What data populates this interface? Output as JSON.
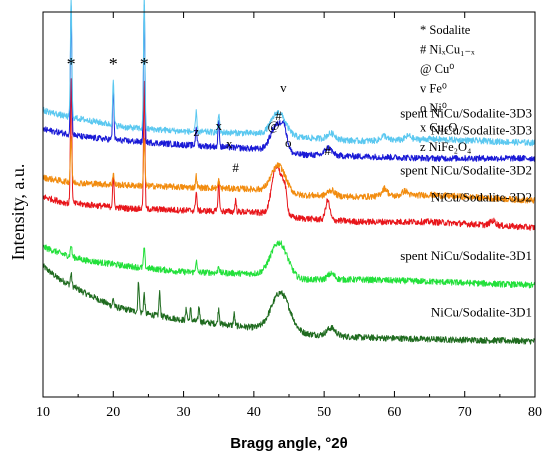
{
  "chart_data": {
    "type": "line",
    "xlabel": "Bragg angle, °2θ",
    "ylabel": "Intensity, a.u.",
    "xlim": [
      10,
      80
    ],
    "x_ticks": [
      10,
      20,
      30,
      40,
      50,
      60,
      70,
      80
    ],
    "y_ticks_shown": false,
    "grid": false,
    "series": [
      {
        "name": "spent NiCu/Sodalite-3D3",
        "color": "#5bc8f0",
        "baseline": [
          [
            10,
            0.745
          ],
          [
            13,
            0.73
          ],
          [
            16,
            0.72
          ],
          [
            22,
            0.7
          ],
          [
            30,
            0.69
          ],
          [
            40,
            0.685
          ],
          [
            46,
            0.675
          ],
          [
            55,
            0.665
          ],
          [
            65,
            0.67
          ],
          [
            80,
            0.66
          ]
        ],
        "peaks": [
          [
            14.0,
            0.31,
            0.1
          ],
          [
            20.0,
            0.11,
            0.1
          ],
          [
            24.4,
            0.34,
            0.1
          ],
          [
            31.8,
            0.05,
            0.1
          ],
          [
            35.0,
            0.05,
            0.1
          ],
          [
            43.5,
            0.06,
            1.0
          ],
          [
            51.0,
            0.015,
            0.6
          ],
          [
            58.5,
            0.012,
            0.4
          ],
          [
            62.0,
            0.01,
            0.4
          ]
        ]
      },
      {
        "name": "NiCu/Sodalite-3D3",
        "color": "#1a1ad6",
        "baseline": [
          [
            10,
            0.695
          ],
          [
            13,
            0.685
          ],
          [
            16,
            0.675
          ],
          [
            22,
            0.665
          ],
          [
            30,
            0.655
          ],
          [
            40,
            0.645
          ],
          [
            46,
            0.63
          ],
          [
            55,
            0.625
          ],
          [
            65,
            0.62
          ],
          [
            80,
            0.62
          ]
        ],
        "peaks": [
          [
            14.0,
            0.33,
            0.1
          ],
          [
            20.0,
            0.13,
            0.1
          ],
          [
            24.4,
            0.35,
            0.1
          ],
          [
            31.8,
            0.05,
            0.1
          ],
          [
            35.0,
            0.07,
            0.1
          ],
          [
            43.3,
            0.07,
            0.9
          ],
          [
            44.3,
            0.04,
            0.4
          ],
          [
            50.6,
            0.02,
            0.5
          ]
        ]
      },
      {
        "name": "spent NiCu/Sodalite-3D2",
        "color": "#f28c0f",
        "baseline": [
          [
            10,
            0.57
          ],
          [
            13,
            0.56
          ],
          [
            16,
            0.555
          ],
          [
            22,
            0.55
          ],
          [
            30,
            0.545
          ],
          [
            40,
            0.54
          ],
          [
            46,
            0.525
          ],
          [
            55,
            0.52
          ],
          [
            65,
            0.525
          ],
          [
            80,
            0.51
          ]
        ],
        "peaks": [
          [
            14.0,
            0.12,
            0.1
          ],
          [
            20.0,
            0.03,
            0.1
          ],
          [
            24.4,
            0.12,
            0.1
          ],
          [
            31.8,
            0.03,
            0.1
          ],
          [
            35.0,
            0.02,
            0.1
          ],
          [
            43.5,
            0.07,
            1.0
          ],
          [
            51.0,
            0.015,
            0.5
          ],
          [
            58.6,
            0.02,
            0.4
          ],
          [
            61.5,
            0.012,
            0.4
          ]
        ]
      },
      {
        "name": "NiCu/Sodalite-3D2",
        "color": "#e8161b",
        "baseline": [
          [
            10,
            0.52
          ],
          [
            13,
            0.505
          ],
          [
            16,
            0.5
          ],
          [
            22,
            0.49
          ],
          [
            30,
            0.485
          ],
          [
            40,
            0.48
          ],
          [
            46,
            0.465
          ],
          [
            55,
            0.455
          ],
          [
            65,
            0.455
          ],
          [
            80,
            0.44
          ]
        ],
        "peaks": [
          [
            14.0,
            0.33,
            0.1
          ],
          [
            20.0,
            0.08,
            0.1
          ],
          [
            24.4,
            0.33,
            0.1
          ],
          [
            31.8,
            0.05,
            0.1
          ],
          [
            35.0,
            0.08,
            0.1
          ],
          [
            37.4,
            0.03,
            0.1
          ],
          [
            43.3,
            0.13,
            0.7
          ],
          [
            44.4,
            0.05,
            0.3
          ],
          [
            50.5,
            0.05,
            0.3
          ],
          [
            74.0,
            0.012,
            0.4
          ]
        ]
      },
      {
        "name": "spent NiCu/Sodalite-3D1",
        "color": "#22e03a",
        "baseline": [
          [
            10,
            0.39
          ],
          [
            13,
            0.37
          ],
          [
            16,
            0.355
          ],
          [
            22,
            0.34
          ],
          [
            30,
            0.325
          ],
          [
            40,
            0.32
          ],
          [
            46,
            0.305
          ],
          [
            55,
            0.305
          ],
          [
            65,
            0.3
          ],
          [
            80,
            0.29
          ]
        ],
        "peaks": [
          [
            14.0,
            0.03,
            0.1
          ],
          [
            24.4,
            0.05,
            0.1
          ],
          [
            31.8,
            0.03,
            0.1
          ],
          [
            35.0,
            0.02,
            0.1
          ],
          [
            43.6,
            0.09,
            1.2
          ],
          [
            51.0,
            0.015,
            0.5
          ]
        ]
      },
      {
        "name": "NiCu/Sodalite-3D1",
        "color": "#1f6b1f",
        "baseline": [
          [
            10,
            0.34
          ],
          [
            12,
            0.31
          ],
          [
            14,
            0.29
          ],
          [
            16,
            0.27
          ],
          [
            20,
            0.235
          ],
          [
            25,
            0.215
          ],
          [
            30,
            0.2
          ],
          [
            35,
            0.19
          ],
          [
            40,
            0.18
          ],
          [
            46,
            0.165
          ],
          [
            55,
            0.155
          ],
          [
            65,
            0.15
          ],
          [
            80,
            0.145
          ]
        ],
        "peaks": [
          [
            14.0,
            0.03,
            0.1
          ],
          [
            20.0,
            0.02,
            0.1
          ],
          [
            23.6,
            0.08,
            0.1
          ],
          [
            24.4,
            0.05,
            0.1
          ],
          [
            26.6,
            0.06,
            0.1
          ],
          [
            30.4,
            0.03,
            0.1
          ],
          [
            31.0,
            0.03,
            0.1
          ],
          [
            32.2,
            0.04,
            0.1
          ],
          [
            35.0,
            0.04,
            0.1
          ],
          [
            37.2,
            0.03,
            0.1
          ],
          [
            43.8,
            0.1,
            1.3
          ],
          [
            51.0,
            0.02,
            0.6
          ]
        ]
      }
    ],
    "legend": [
      {
        "symbol": "*",
        "label": "Sodalite"
      },
      {
        "symbol": "#",
        "label": "NiₓCu₁₋ₓ"
      },
      {
        "symbol": "@",
        "label": "Cu⁰"
      },
      {
        "symbol": "v",
        "label": "Fe⁰"
      },
      {
        "symbol": "o",
        "label": "Ni⁰"
      },
      {
        "symbol": "x",
        "label": "Cu₂O"
      },
      {
        "symbol": "z",
        "label": "NiFe₂O₄"
      }
    ],
    "peak_markers": [
      {
        "symbol": "*",
        "x": 14.0
      },
      {
        "symbol": "*",
        "x": 20.0
      },
      {
        "symbol": "*",
        "x": 24.4
      },
      {
        "symbol": "z",
        "x": 31.8
      },
      {
        "symbol": "x",
        "x": 35.0
      },
      {
        "symbol": "x",
        "x": 36.5
      },
      {
        "symbol": "#",
        "x": 37.4
      },
      {
        "symbol": "@",
        "x": 42.8
      },
      {
        "symbol": "#",
        "x": 43.5
      },
      {
        "symbol": "v",
        "x": 44.2
      },
      {
        "symbol": "o",
        "x": 44.9
      },
      {
        "symbol": "#",
        "x": 50.5
      }
    ]
  }
}
